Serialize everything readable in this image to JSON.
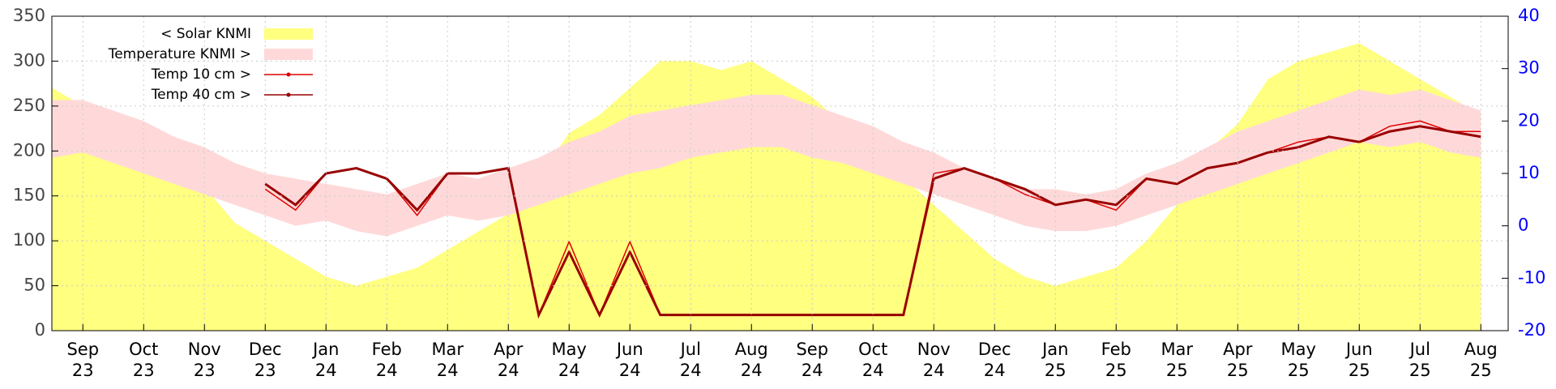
{
  "chart_data": {
    "type": "line",
    "x": [
      0.5,
      1.0,
      1.5,
      2.0,
      2.5,
      3.0,
      3.5,
      4.0,
      4.5,
      5.0,
      5.5,
      6.0,
      6.5,
      7.0,
      7.5,
      8.0,
      8.5,
      9.0,
      9.5,
      10.0,
      10.5,
      11.0,
      11.5,
      12.0,
      12.5,
      13.0,
      13.5,
      14.0,
      14.5,
      15.0,
      15.5,
      16.0,
      16.5,
      17.0,
      17.5,
      18.0,
      18.5,
      19.0,
      19.5,
      20.0,
      20.5,
      21.0,
      21.5,
      22.0,
      22.5,
      23.0,
      23.5,
      24.0
    ],
    "series": [
      {
        "name": "< Solar KNMI",
        "color": "#ffff80",
        "style": "area",
        "values": [
          270,
          250,
          230,
          220,
          190,
          160,
          120,
          100,
          80,
          60,
          50,
          60,
          70,
          90,
          110,
          130,
          170,
          220,
          240,
          270,
          300,
          300,
          290,
          300,
          280,
          260,
          230,
          200,
          170,
          140,
          110,
          80,
          60,
          50,
          60,
          70,
          100,
          140,
          200,
          230,
          280,
          300,
          310,
          320,
          300,
          280,
          260,
          240
        ]
      },
      {
        "name": "Temperature KNMI >",
        "color": "#ffd9d9",
        "style": "band",
        "axis": "y2",
        "values": [
          24,
          24,
          22,
          20,
          17,
          15,
          12,
          10,
          9,
          8,
          7,
          6,
          8,
          10,
          9,
          11,
          13,
          16,
          18,
          21,
          22,
          23,
          24,
          25,
          25,
          23,
          21,
          19,
          16,
          14,
          11,
          9,
          7,
          7,
          6,
          7,
          10,
          12,
          15,
          18,
          20,
          22,
          24,
          26,
          25,
          26,
          24,
          22
        ],
        "low": [
          13,
          14,
          12,
          10,
          8,
          6,
          4,
          2,
          0,
          1,
          -1,
          -2,
          0,
          2,
          1,
          2,
          4,
          6,
          8,
          10,
          11,
          13,
          14,
          15,
          15,
          13,
          12,
          10,
          8,
          6,
          4,
          2,
          0,
          -1,
          -1,
          0,
          2,
          4,
          6,
          8,
          10,
          12,
          14,
          16,
          15,
          16,
          14,
          13
        ]
      },
      {
        "name": "Temp 10 cm >",
        "color": "#e00000",
        "style": "line",
        "axis": "y2",
        "values": [
          null,
          null,
          null,
          null,
          null,
          null,
          null,
          7,
          3,
          10,
          11,
          9,
          2,
          10,
          10,
          11,
          -17,
          -3,
          -17,
          -3,
          -17,
          -17,
          -17,
          -17,
          -17,
          -17,
          -17,
          -17,
          -17,
          10,
          11,
          9,
          6,
          4,
          5,
          3,
          9,
          8,
          11,
          12,
          14,
          16,
          17,
          16,
          19,
          20,
          18,
          18
        ]
      },
      {
        "name": "Temp 40 cm >",
        "color": "#990000",
        "style": "line",
        "axis": "y2",
        "values": [
          null,
          null,
          null,
          null,
          null,
          null,
          null,
          8,
          4,
          10,
          11,
          9,
          3,
          10,
          10,
          11,
          -17,
          -5,
          -17,
          -5,
          -17,
          -17,
          -17,
          -17,
          -17,
          -17,
          -17,
          -17,
          -17,
          9,
          11,
          9,
          7,
          4,
          5,
          4,
          9,
          8,
          11,
          12,
          14,
          15,
          17,
          16,
          18,
          19,
          18,
          17
        ]
      }
    ],
    "xlim": [
      0.49,
      24.45
    ],
    "xticks": [
      {
        "value": 1,
        "label": "Sep"
      },
      {
        "value": 2,
        "label": "Oct"
      },
      {
        "value": 3,
        "label": "Nov"
      },
      {
        "value": 4,
        "label": "Dec"
      },
      {
        "value": 5,
        "label": "Jan"
      },
      {
        "value": 6,
        "label": "Feb"
      },
      {
        "value": 7,
        "label": "Mar"
      },
      {
        "value": 8,
        "label": "Apr"
      },
      {
        "value": 9,
        "label": "May"
      },
      {
        "value": 10,
        "label": "Jun"
      },
      {
        "value": 11,
        "label": "Jul"
      },
      {
        "value": 12,
        "label": "Aug"
      },
      {
        "value": 13,
        "label": "Sep"
      },
      {
        "value": 14,
        "label": "Oct"
      },
      {
        "value": 15,
        "label": "Nov"
      },
      {
        "value": 16,
        "label": "Dec"
      },
      {
        "value": 17,
        "label": "Jan"
      },
      {
        "value": 18,
        "label": "Feb"
      },
      {
        "value": 19,
        "label": "Mar"
      },
      {
        "value": 20,
        "label": "Apr"
      },
      {
        "value": 21,
        "label": "May"
      },
      {
        "value": 22,
        "label": "Jun"
      },
      {
        "value": 23,
        "label": "Jul"
      },
      {
        "value": 24,
        "label": "Aug"
      }
    ],
    "xtick_years": [
      "23",
      "23",
      "23",
      "23",
      "24",
      "24",
      "24",
      "24",
      "24",
      "24",
      "24",
      "24",
      "24",
      "24",
      "24",
      "24",
      "25",
      "25",
      "25",
      "25",
      "25",
      "25",
      "25",
      "25"
    ],
    "ylim": [
      0,
      350
    ],
    "yticks": [
      0,
      50,
      100,
      150,
      200,
      250,
      300,
      350
    ],
    "y2lim": [
      -20,
      40
    ],
    "y2ticks": [
      -20,
      -10,
      0,
      10,
      20,
      30,
      40
    ],
    "y2color": "#0000ff",
    "grid": true,
    "legend": "top-left"
  }
}
